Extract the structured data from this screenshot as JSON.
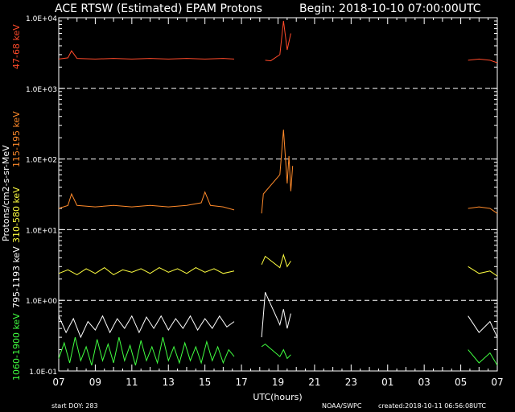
{
  "header": {
    "title": "ACE RTSW (Estimated) EPAM Protons",
    "begin": "Begin: 2018-10-10 07:00:00UTC"
  },
  "footer": {
    "start_doy": "start DOY:  283",
    "source": "NOAA/SWPC",
    "created": "created:2018-10-11 06:56:08UTC"
  },
  "chart_data": {
    "type": "line",
    "title": "ACE RTSW (Estimated) EPAM Protons",
    "xlabel": "UTC(hours)",
    "ylabel": "Protons/cm2-s-sr-MeV",
    "yscale": "log",
    "ylim": [
      0.1,
      10000
    ],
    "xlim_hours": [
      0,
      24
    ],
    "x_tick_labels": [
      "07",
      "09",
      "11",
      "13",
      "15",
      "17",
      "19",
      "21",
      "23",
      "01",
      "03",
      "05",
      "07"
    ],
    "y_tick_labels": [
      "1.0E-01",
      "1.0E+00",
      "1.0E+01",
      "1.0E+02",
      "1.0E+03",
      "1.0E+04"
    ],
    "y_tick_values": [
      0.1,
      1,
      10,
      100,
      1000,
      10000
    ],
    "grid": "dashed horizontal at decades",
    "legend": "left, vertical",
    "series": [
      {
        "name": "47-68 keV",
        "color": "#ff4a2a",
        "points": [
          [
            0,
            2600
          ],
          [
            0.5,
            2700
          ],
          [
            0.7,
            3400
          ],
          [
            1,
            2650
          ],
          [
            2,
            2600
          ],
          [
            3,
            2650
          ],
          [
            4,
            2600
          ],
          [
            5,
            2650
          ],
          [
            6,
            2600
          ],
          [
            7,
            2650
          ],
          [
            8,
            2600
          ],
          [
            9,
            2650
          ],
          [
            9.6,
            2600
          ],
          [
            11.3,
            2500
          ],
          [
            11.6,
            2450
          ],
          [
            12.1,
            3000
          ],
          [
            12.3,
            9000
          ],
          [
            12.5,
            3500
          ],
          [
            12.7,
            6000
          ],
          [
            22.4,
            2500
          ],
          [
            23,
            2600
          ],
          [
            23.6,
            2500
          ],
          [
            24,
            2300
          ]
        ]
      },
      {
        "name": "115-195 keV",
        "color": "#ff8a2a",
        "points": [
          [
            0,
            20
          ],
          [
            0.5,
            22
          ],
          [
            0.7,
            32
          ],
          [
            1,
            22
          ],
          [
            2,
            21
          ],
          [
            3,
            22
          ],
          [
            4,
            21
          ],
          [
            5,
            22
          ],
          [
            6,
            21
          ],
          [
            7,
            22
          ],
          [
            7.8,
            24
          ],
          [
            8,
            34
          ],
          [
            8.3,
            22
          ],
          [
            9,
            21
          ],
          [
            9.6,
            19
          ],
          [
            11.1,
            17
          ],
          [
            11.2,
            32
          ],
          [
            12.1,
            60
          ],
          [
            12.3,
            260
          ],
          [
            12.5,
            45
          ],
          [
            12.6,
            110
          ],
          [
            12.7,
            35
          ],
          [
            12.8,
            80
          ],
          [
            22.4,
            20
          ],
          [
            23,
            21
          ],
          [
            23.6,
            20
          ],
          [
            24,
            17
          ]
        ]
      },
      {
        "name": "310-580 keV",
        "color": "#ffff40",
        "points": [
          [
            0,
            2.4
          ],
          [
            0.5,
            2.7
          ],
          [
            1,
            2.3
          ],
          [
            1.5,
            2.8
          ],
          [
            2,
            2.4
          ],
          [
            2.5,
            2.9
          ],
          [
            3,
            2.3
          ],
          [
            3.5,
            2.7
          ],
          [
            4,
            2.5
          ],
          [
            4.5,
            2.8
          ],
          [
            5,
            2.4
          ],
          [
            5.5,
            2.9
          ],
          [
            6,
            2.5
          ],
          [
            6.5,
            2.8
          ],
          [
            7,
            2.4
          ],
          [
            7.5,
            2.9
          ],
          [
            8,
            2.5
          ],
          [
            8.5,
            2.8
          ],
          [
            9,
            2.4
          ],
          [
            9.6,
            2.6
          ],
          [
            11.1,
            3.2
          ],
          [
            11.3,
            4.2
          ],
          [
            12.1,
            2.9
          ],
          [
            12.3,
            4.4
          ],
          [
            12.5,
            3.0
          ],
          [
            12.7,
            3.6
          ],
          [
            22.4,
            3.0
          ],
          [
            23,
            2.4
          ],
          [
            23.6,
            2.6
          ],
          [
            24,
            2.2
          ]
        ]
      },
      {
        "name": "795-1193 keV",
        "color": "#ffffff",
        "points": [
          [
            0,
            0.6
          ],
          [
            0.4,
            0.35
          ],
          [
            0.8,
            0.55
          ],
          [
            1.2,
            0.3
          ],
          [
            1.6,
            0.5
          ],
          [
            2,
            0.38
          ],
          [
            2.4,
            0.6
          ],
          [
            2.8,
            0.35
          ],
          [
            3.2,
            0.55
          ],
          [
            3.6,
            0.4
          ],
          [
            4,
            0.6
          ],
          [
            4.4,
            0.35
          ],
          [
            4.8,
            0.58
          ],
          [
            5.2,
            0.4
          ],
          [
            5.6,
            0.6
          ],
          [
            6,
            0.38
          ],
          [
            6.4,
            0.55
          ],
          [
            6.8,
            0.4
          ],
          [
            7.2,
            0.6
          ],
          [
            7.6,
            0.38
          ],
          [
            8,
            0.55
          ],
          [
            8.4,
            0.4
          ],
          [
            8.8,
            0.6
          ],
          [
            9.2,
            0.42
          ],
          [
            9.6,
            0.5
          ],
          [
            11.1,
            0.3
          ],
          [
            11.3,
            1.3
          ],
          [
            12.1,
            0.45
          ],
          [
            12.3,
            0.75
          ],
          [
            12.5,
            0.4
          ],
          [
            12.7,
            0.65
          ],
          [
            22.4,
            0.6
          ],
          [
            23,
            0.35
          ],
          [
            23.6,
            0.5
          ],
          [
            24,
            0.3
          ]
        ]
      },
      {
        "name": "1060-1900 keV",
        "color": "#40ff40",
        "points": [
          [
            0,
            0.15
          ],
          [
            0.3,
            0.25
          ],
          [
            0.6,
            0.13
          ],
          [
            0.9,
            0.3
          ],
          [
            1.2,
            0.14
          ],
          [
            1.5,
            0.22
          ],
          [
            1.8,
            0.12
          ],
          [
            2.1,
            0.28
          ],
          [
            2.4,
            0.14
          ],
          [
            2.7,
            0.24
          ],
          [
            3,
            0.13
          ],
          [
            3.3,
            0.3
          ],
          [
            3.6,
            0.14
          ],
          [
            3.9,
            0.23
          ],
          [
            4.2,
            0.12
          ],
          [
            4.5,
            0.27
          ],
          [
            4.8,
            0.14
          ],
          [
            5.1,
            0.22
          ],
          [
            5.4,
            0.13
          ],
          [
            5.7,
            0.3
          ],
          [
            6,
            0.14
          ],
          [
            6.3,
            0.22
          ],
          [
            6.6,
            0.13
          ],
          [
            6.9,
            0.25
          ],
          [
            7.2,
            0.14
          ],
          [
            7.5,
            0.22
          ],
          [
            7.8,
            0.13
          ],
          [
            8.1,
            0.26
          ],
          [
            8.4,
            0.14
          ],
          [
            8.7,
            0.22
          ],
          [
            9,
            0.13
          ],
          [
            9.3,
            0.2
          ],
          [
            9.6,
            0.16
          ],
          [
            11.1,
            0.22
          ],
          [
            11.3,
            0.24
          ],
          [
            12.1,
            0.16
          ],
          [
            12.3,
            0.2
          ],
          [
            12.5,
            0.15
          ],
          [
            12.7,
            0.17
          ],
          [
            22.4,
            0.2
          ],
          [
            23,
            0.13
          ],
          [
            23.6,
            0.18
          ],
          [
            24,
            0.12
          ]
        ]
      }
    ]
  }
}
